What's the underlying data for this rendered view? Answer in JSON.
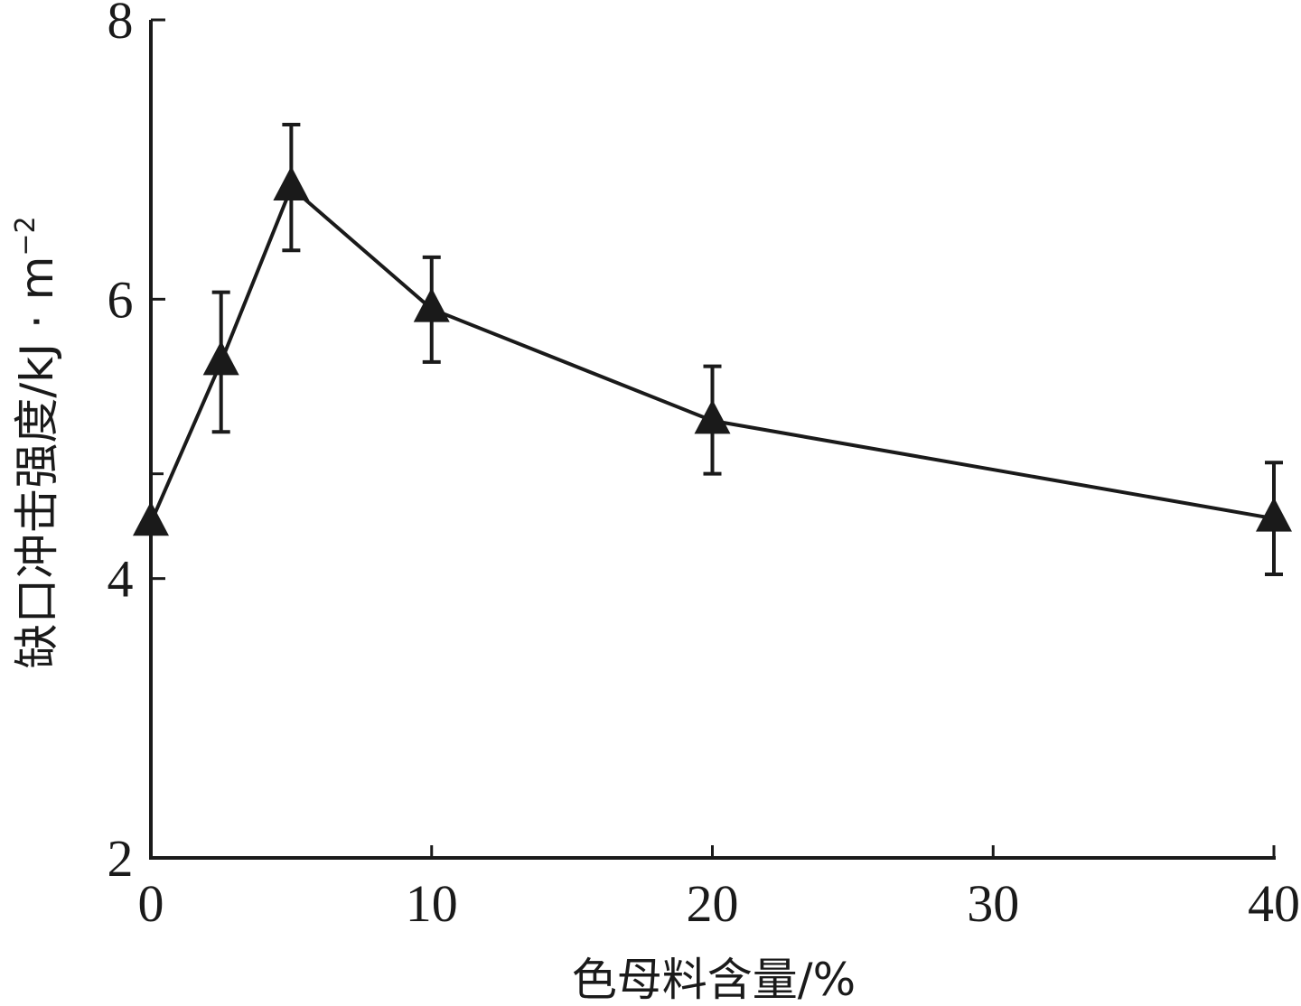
{
  "chart_data": {
    "type": "line",
    "title": "",
    "xlabel": "色母料含量/%",
    "ylabel": "缺口冲击强度/kJ · m",
    "ylabel_superscript": "−2",
    "xlim": [
      0,
      40
    ],
    "ylim": [
      2,
      8
    ],
    "x_ticks": [
      0,
      10,
      20,
      30,
      40
    ],
    "x_tick_labels": [
      "0",
      "10",
      "20",
      "30",
      "40"
    ],
    "y_ticks": [
      2,
      4,
      6,
      8
    ],
    "y_tick_labels": [
      "2",
      "4",
      "6",
      "8"
    ],
    "y_minor_ticks": [
      4.75
    ],
    "grid": false,
    "legend": "none",
    "marker": "triangle",
    "color": "#1a1a1a",
    "series": [
      {
        "x": [
          0,
          2.5,
          5,
          10,
          20,
          40
        ],
        "values": [
          4.4,
          5.55,
          6.8,
          5.93,
          5.13,
          4.43
        ],
        "error_low": [
          4.4,
          5.05,
          6.35,
          5.55,
          4.75,
          4.03
        ],
        "error_high": [
          4.4,
          6.05,
          7.25,
          6.3,
          5.52,
          4.83
        ]
      }
    ]
  }
}
